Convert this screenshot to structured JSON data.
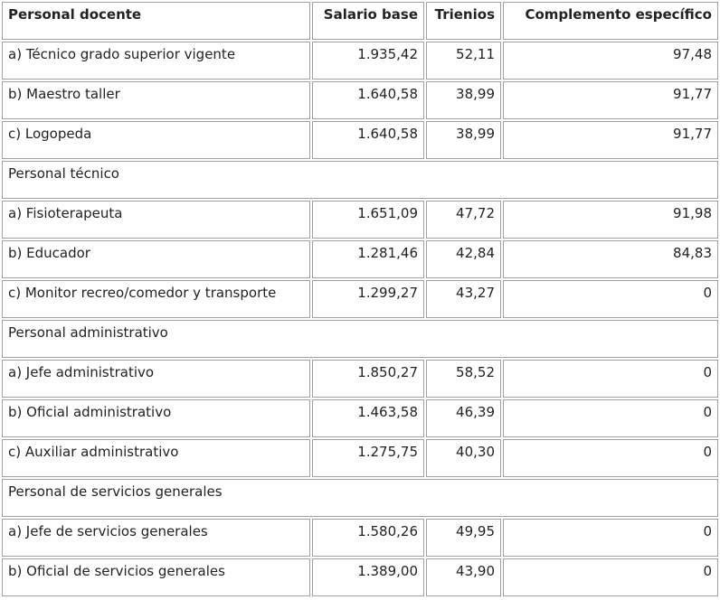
{
  "table": {
    "header": [
      "Personal docente",
      "Salario base",
      "Trienios",
      "Complemento específico"
    ],
    "rows": [
      [
        "a) Técnico grado superior vigente",
        "1.935,42",
        "52,11",
        "97,48"
      ],
      [
        "b) Maestro taller",
        "1.640,58",
        "38,99",
        "91,77"
      ],
      [
        "c) Logopeda",
        "1.640,58",
        "38,99",
        "91,77"
      ],
      [
        "Personal técnico"
      ],
      [
        "a) Fisioterapeuta",
        "1.651,09",
        "47,72",
        "91,98"
      ],
      [
        "b) Educador",
        "1.281,46",
        "42,84",
        "84,83"
      ],
      [
        "c) Monitor recreo/comedor y transporte",
        "1.299,27",
        "43,27",
        "0"
      ],
      [
        "Personal administrativo"
      ],
      [
        "a) Jefe administrativo",
        "1.850,27",
        "58,52",
        "0"
      ],
      [
        "b) Oficial administrativo",
        "1.463,58",
        "46,39",
        "0"
      ],
      [
        "c) Auxiliar administrativo",
        "1.275,75",
        "40,30",
        "0"
      ],
      [
        "Personal de servicios generales"
      ],
      [
        "a) Jefe de servicios generales",
        "1.580,26",
        "49,95",
        "0"
      ],
      [
        "b) Oficial de servicios generales",
        "1.389,00",
        "43,90",
        "0"
      ]
    ]
  }
}
